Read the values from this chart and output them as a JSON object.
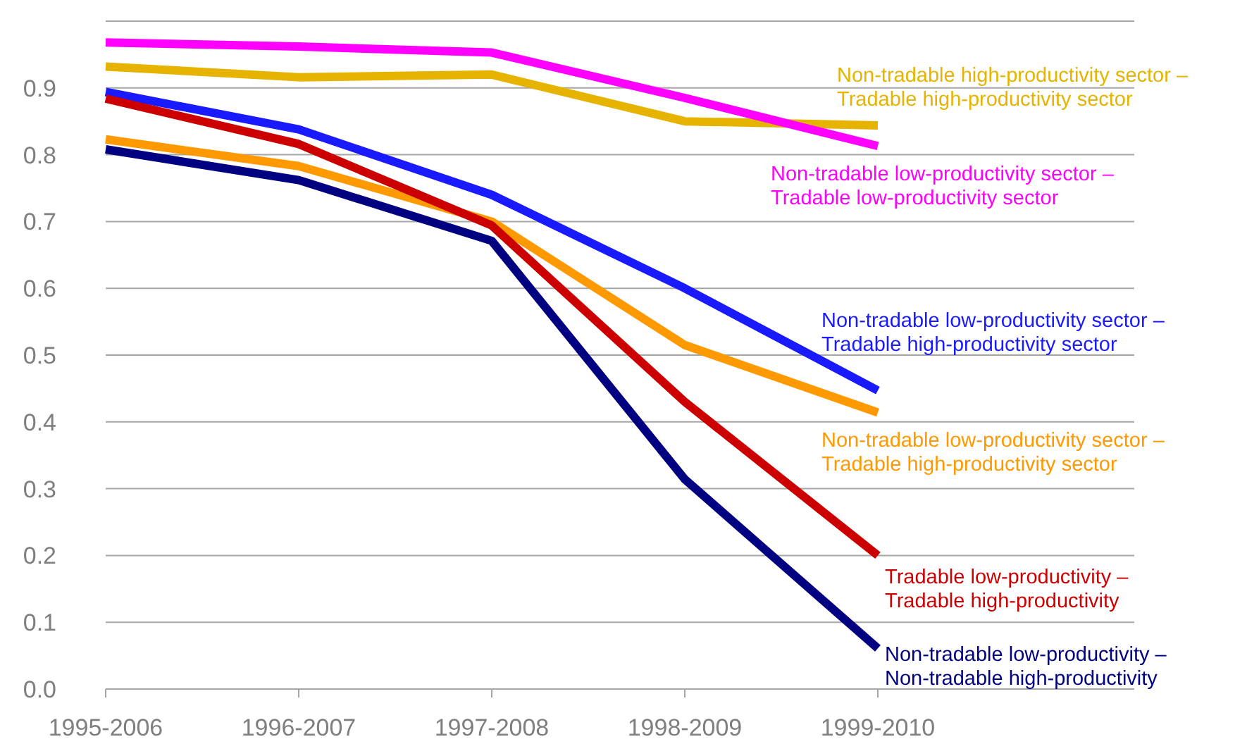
{
  "chart_data": {
    "type": "line",
    "categories": [
      "1995-2006",
      "1996-2007",
      "1997-2008",
      "1998-2009",
      "1999-2010"
    ],
    "ylim": [
      0,
      1
    ],
    "yticks": [
      {
        "value": 0,
        "label": "0.0"
      },
      {
        "value": 0.1,
        "label": "0.1"
      },
      {
        "value": 0.2,
        "label": "0.2"
      },
      {
        "value": 0.3,
        "label": "0.3"
      },
      {
        "value": 0.4,
        "label": "0.4"
      },
      {
        "value": 0.5,
        "label": "0.5"
      },
      {
        "value": 0.6,
        "label": "0.6"
      },
      {
        "value": 0.7,
        "label": "0.7"
      },
      {
        "value": 0.8,
        "label": "0.8"
      },
      {
        "value": 0.9,
        "label": "0.9"
      },
      {
        "value": 1,
        "label": null
      }
    ],
    "grid": "y",
    "legend": false,
    "marker": "none",
    "line_style": "solid",
    "series": [
      {
        "name": "Non-tradable high-productivity sector – Tradable high-productivity sector",
        "color": "#e6b400",
        "values": [
          0.932,
          0.916,
          0.92,
          0.85,
          0.844
        ]
      },
      {
        "name": "Non-tradable low-productivity sector – Tradable low-productivity sector",
        "color": "#ff00ff",
        "values": [
          0.968,
          0.962,
          0.953,
          0.885,
          0.813
        ]
      },
      {
        "name": "Non-tradable low-productivity sector – Tradable high-productivity sector",
        "color": "#1a1aff",
        "values": [
          0.894,
          0.838,
          0.74,
          0.6,
          0.447
        ]
      },
      {
        "name": "Non-tradable low-productivity sector – Tradable high-productivity sector",
        "color": "#ff9900",
        "values": [
          0.823,
          0.783,
          0.7,
          0.515,
          0.414
        ]
      },
      {
        "name": "Tradable low-productivity – Tradable high-productivity",
        "color": "#cc0000",
        "values": [
          0.884,
          0.816,
          0.694,
          0.43,
          0.2
        ]
      },
      {
        "name": "Non-tradable low-productivity – Non-tradable high-productivity",
        "color": "#000080",
        "values": [
          0.808,
          0.762,
          0.671,
          0.314,
          0.061
        ]
      }
    ]
  }
}
